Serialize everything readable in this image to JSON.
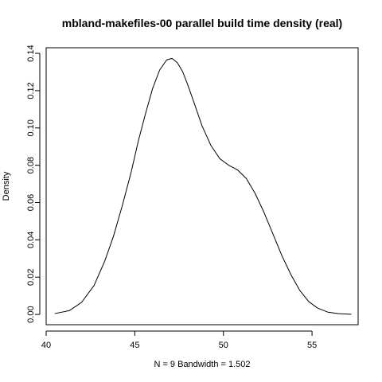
{
  "chart_data": {
    "type": "line",
    "title": "mbland-makefiles-00 parallel build time density (real)",
    "xlabel": "N = 9   Bandwidth = 1.502",
    "ylabel": "Density",
    "xlim": [
      40,
      57.6
    ],
    "ylim": [
      -0.0055,
      0.143
    ],
    "grid": false,
    "x_ticks": [
      40,
      45,
      50,
      55
    ],
    "y_ticks": [
      0.0,
      0.02,
      0.04,
      0.06,
      0.08,
      0.1,
      0.12,
      0.14
    ],
    "x_tick_labels": [
      "40",
      "45",
      "50",
      "55"
    ],
    "y_tick_labels": [
      "0.00",
      "0.02",
      "0.04",
      "0.06",
      "0.08",
      "0.10",
      "0.12",
      "0.14"
    ],
    "series": [
      {
        "color": "#000000",
        "x": [
          40.5,
          41.3,
          42.0,
          42.7,
          43.3,
          43.8,
          44.3,
          44.8,
          45.2,
          45.6,
          46.0,
          46.4,
          46.8,
          47.1,
          47.4,
          47.7,
          48.0,
          48.4,
          48.8,
          49.3,
          49.8,
          50.3,
          50.8,
          51.3,
          51.8,
          52.3,
          52.8,
          53.3,
          53.8,
          54.3,
          54.8,
          55.3,
          55.9,
          56.5,
          57.2
        ],
        "y": [
          0.0005,
          0.002,
          0.0065,
          0.0155,
          0.0285,
          0.042,
          0.0585,
          0.0765,
          0.093,
          0.1075,
          0.121,
          0.131,
          0.1365,
          0.1373,
          0.135,
          0.1302,
          0.1228,
          0.112,
          0.101,
          0.0905,
          0.0835,
          0.08,
          0.0775,
          0.0728,
          0.0647,
          0.0545,
          0.043,
          0.0315,
          0.0215,
          0.013,
          0.007,
          0.0035,
          0.0012,
          0.0004,
          0.0001
        ]
      }
    ]
  }
}
